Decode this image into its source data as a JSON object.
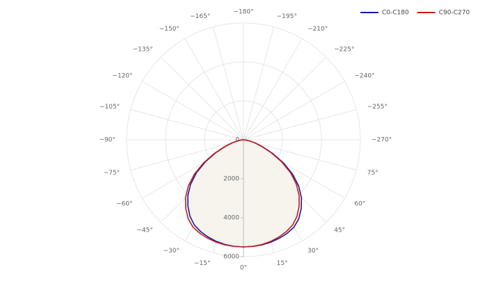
{
  "chart_data": {
    "type": "polar",
    "x": [
      -90,
      -85,
      -80,
      -75,
      -70,
      -65,
      -60,
      -55,
      -50,
      -45,
      -40,
      -35,
      -30,
      -25,
      -20,
      -15,
      -10,
      -5,
      0,
      5,
      10,
      15,
      20,
      25,
      30,
      35,
      40,
      45,
      50,
      55,
      60,
      65,
      70,
      75,
      80,
      85,
      90
    ],
    "series": [
      {
        "name": "C0-C180",
        "color": "#1a1a9c",
        "values": [
          0,
          110,
          290,
          590,
          980,
          1570,
          2260,
          2950,
          3540,
          4040,
          4440,
          4790,
          5050,
          5200,
          5310,
          5400,
          5460,
          5490,
          5500,
          5495,
          5480,
          5440,
          5380,
          5300,
          5180,
          4950,
          4610,
          4210,
          3700,
          3080,
          2360,
          1640,
          1030,
          620,
          310,
          120,
          0
        ]
      },
      {
        "name": "C90-C270",
        "color": "#c41e1e",
        "values": [
          0,
          120,
          310,
          620,
          1030,
          1640,
          2360,
          3080,
          3700,
          4210,
          4610,
          4950,
          5180,
          5300,
          5380,
          5440,
          5480,
          5495,
          5500,
          5490,
          5460,
          5400,
          5310,
          5200,
          5050,
          4790,
          4440,
          4040,
          3540,
          2950,
          2260,
          1570,
          980,
          590,
          290,
          110,
          0
        ]
      }
    ],
    "rlim": [
      0,
      6000
    ],
    "rticks": [
      0,
      2000,
      4000,
      6000
    ],
    "angularticks": [
      {
        "value": 0,
        "label": "0°"
      },
      {
        "value": 15,
        "label": "15°"
      },
      {
        "value": 30,
        "label": "30°"
      },
      {
        "value": 45,
        "label": "45°"
      },
      {
        "value": 60,
        "label": "60°"
      },
      {
        "value": 75,
        "label": "75°"
      },
      {
        "value": -270,
        "label": "−270°"
      },
      {
        "value": -255,
        "label": "−255°"
      },
      {
        "value": -240,
        "label": "−240°"
      },
      {
        "value": -225,
        "label": "−225°"
      },
      {
        "value": -210,
        "label": "−210°"
      },
      {
        "value": -195,
        "label": "−195°"
      },
      {
        "value": -180,
        "label": "−180°"
      },
      {
        "value": -165,
        "label": "−165°"
      },
      {
        "value": -150,
        "label": "−150°"
      },
      {
        "value": -135,
        "label": "−135°"
      },
      {
        "value": -120,
        "label": "−120°"
      },
      {
        "value": -105,
        "label": "−105°"
      },
      {
        "value": -90,
        "label": "−90°"
      },
      {
        "value": -75,
        "label": "−75°"
      },
      {
        "value": -60,
        "label": "−60°"
      },
      {
        "value": -45,
        "label": "−45°"
      },
      {
        "value": -30,
        "label": "−30°"
      },
      {
        "value": -15,
        "label": "−15°"
      }
    ],
    "fill_color": "#f6f4ec",
    "grid": true
  }
}
